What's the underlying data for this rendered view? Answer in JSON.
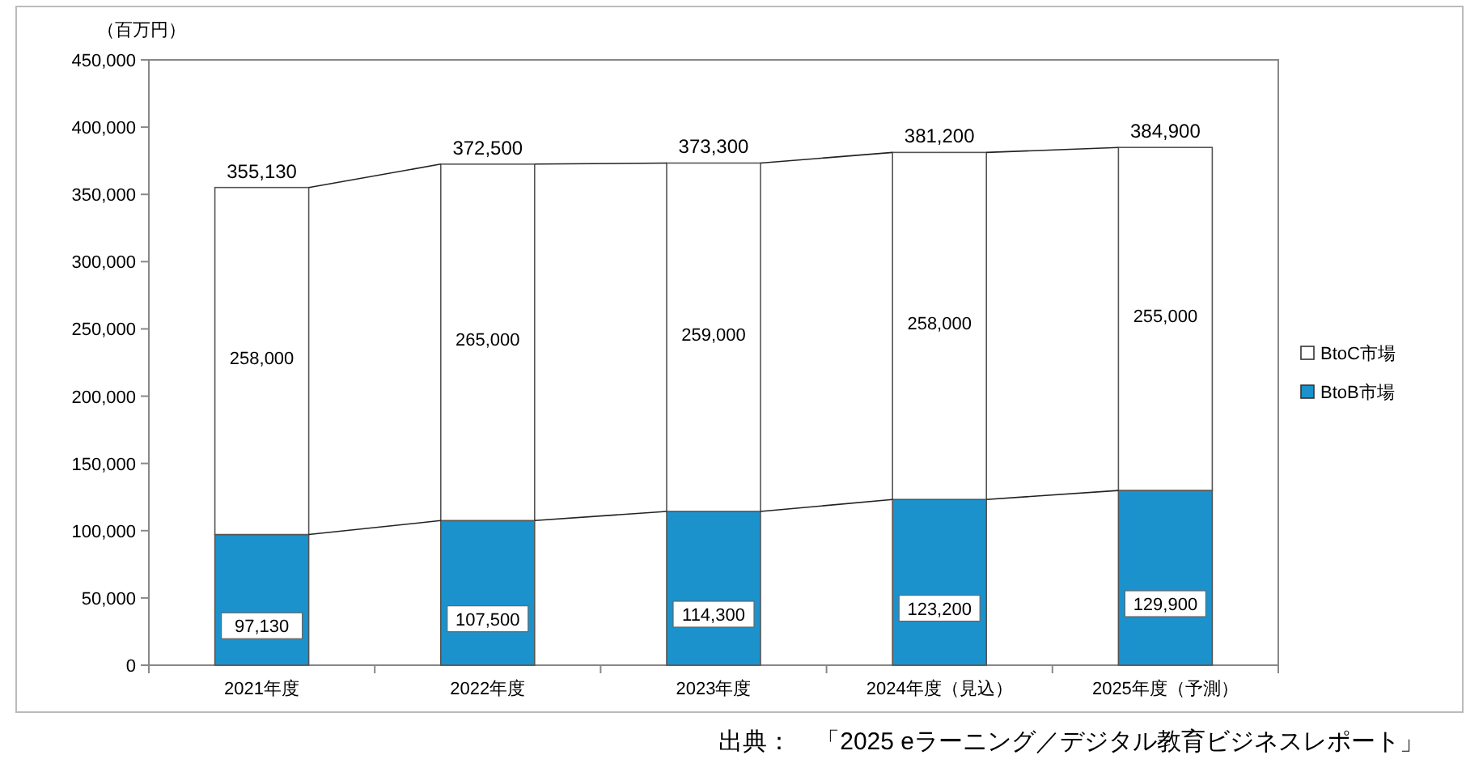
{
  "chart_data": {
    "type": "bar",
    "stacked": true,
    "ylabel": "（百万円）",
    "categories": [
      "2021年度",
      "2022年度",
      "2023年度",
      "2024年度（見込）",
      "2025年度（予測）"
    ],
    "series": [
      {
        "name": "BtoB市場",
        "color": "#1b92cc",
        "values": [
          97130,
          107500,
          114300,
          123200,
          129900
        ],
        "value_labels": [
          "97,130",
          "107,500",
          "114,300",
          "123,200",
          "129,900"
        ]
      },
      {
        "name": "BtoC市場",
        "color": "#ffffff",
        "values": [
          258000,
          265000,
          259000,
          258000,
          255000
        ],
        "value_labels": [
          "258,000",
          "265,000",
          "259,000",
          "258,000",
          "255,000"
        ]
      }
    ],
    "totals": [
      "355,130",
      "372,500",
      "373,300",
      "381,200",
      "384,900"
    ],
    "ylim": [
      0,
      450000
    ],
    "yticks": [
      0,
      {
        "value": 50000,
        "label": "50,000"
      },
      {
        "value": 100000,
        "label": "100,000"
      },
      {
        "value": 150000,
        "label": "150,000"
      },
      {
        "value": 200000,
        "label": "200,000"
      },
      {
        "value": 250000,
        "label": "250,000"
      },
      {
        "value": 300000,
        "label": "300,000"
      },
      {
        "value": 350000,
        "label": "350,000"
      },
      {
        "value": 400000,
        "label": "400,000"
      },
      {
        "value": 450000,
        "label": "450,000"
      }
    ],
    "grid": false,
    "legend": "right",
    "annotations": [
      "出典：　「2025 eラーニング／デジタル教育ビジネスレポート」"
    ]
  }
}
